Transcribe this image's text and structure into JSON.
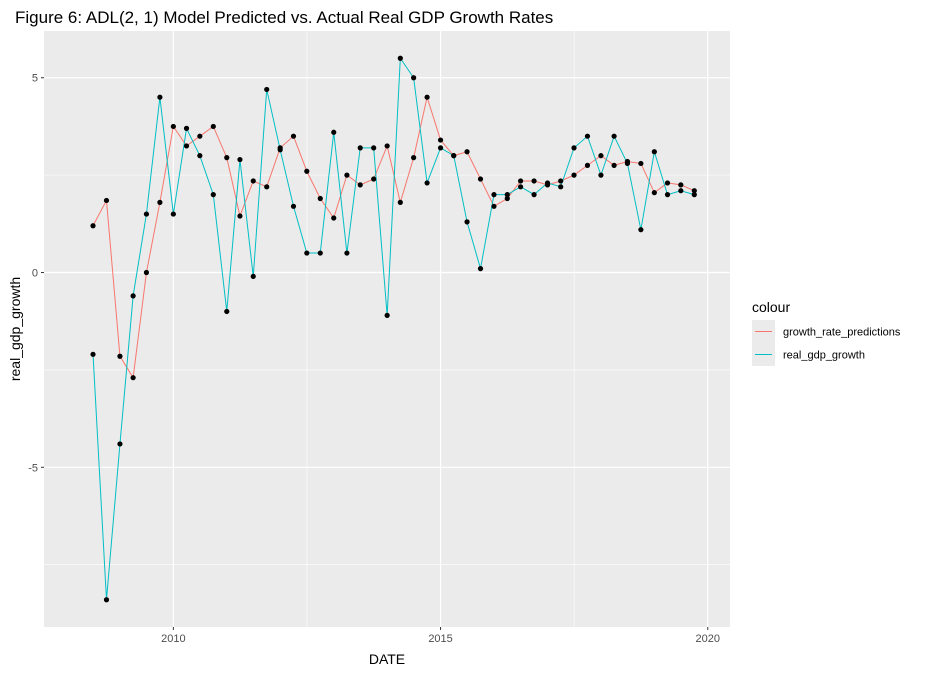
{
  "chart_data": {
    "type": "line",
    "title": "Figure 6: ADL(2, 1) Model Predicted vs. Actual Real GDP Growth Rates",
    "xlabel": "DATE",
    "ylabel": "real_gdp_growth",
    "x_ticks": [
      "2010",
      "2015",
      "2020"
    ],
    "y_ticks": [
      "-5",
      "0",
      "5"
    ],
    "xlim": [
      "2007-08-01",
      "2020-06-01"
    ],
    "ylim": [
      -9.1,
      6.2
    ],
    "grid": true,
    "legend": {
      "title": "colour",
      "position": "right"
    },
    "colors": {
      "panel": "#ebebeb",
      "grid": "#ffffff",
      "growth_rate_predictions": "#f8766d",
      "real_gdp_growth": "#00bfc4",
      "points": "#000000"
    },
    "x": [
      "2008-07-01",
      "2008-10-01",
      "2009-01-01",
      "2009-04-01",
      "2009-07-01",
      "2009-10-01",
      "2010-01-01",
      "2010-04-01",
      "2010-07-01",
      "2010-10-01",
      "2011-01-01",
      "2011-04-01",
      "2011-07-01",
      "2011-10-01",
      "2012-01-01",
      "2012-04-01",
      "2012-07-01",
      "2012-10-01",
      "2013-01-01",
      "2013-04-01",
      "2013-07-01",
      "2013-10-01",
      "2014-01-01",
      "2014-04-01",
      "2014-07-01",
      "2014-10-01",
      "2015-01-01",
      "2015-04-01",
      "2015-07-01",
      "2015-10-01",
      "2016-01-01",
      "2016-04-01",
      "2016-07-01",
      "2016-10-01",
      "2017-01-01",
      "2017-04-01",
      "2017-07-01",
      "2017-10-01",
      "2018-01-01",
      "2018-04-01",
      "2018-07-01",
      "2018-10-01",
      "2019-01-01",
      "2019-04-01",
      "2019-07-01",
      "2019-10-01"
    ],
    "series": [
      {
        "name": "growth_rate_predictions",
        "values": [
          1.2,
          1.85,
          -2.15,
          -2.7,
          0.0,
          1.8,
          3.75,
          3.25,
          3.5,
          3.75,
          2.95,
          1.45,
          2.35,
          2.2,
          3.2,
          3.5,
          2.6,
          1.9,
          1.4,
          2.5,
          2.25,
          2.4,
          3.25,
          1.8,
          2.95,
          4.5,
          3.4,
          3.0,
          3.1,
          2.4,
          1.7,
          1.9,
          2.35,
          2.35,
          2.25,
          2.35,
          2.5,
          2.75,
          3.0,
          2.75,
          2.85,
          2.8,
          2.05,
          2.3,
          2.25,
          2.1
        ]
      },
      {
        "name": "real_gdp_growth",
        "values": [
          -2.1,
          -8.4,
          -4.4,
          -0.6,
          1.5,
          4.5,
          1.5,
          3.7,
          3.0,
          2.0,
          -1.0,
          2.9,
          -0.1,
          4.7,
          3.15,
          1.7,
          0.5,
          0.5,
          3.6,
          0.5,
          3.2,
          3.2,
          -1.1,
          5.5,
          5.0,
          2.3,
          3.2,
          3.0,
          1.3,
          0.1,
          2.0,
          2.0,
          2.2,
          2.0,
          2.3,
          2.2,
          3.2,
          3.5,
          2.5,
          3.5,
          2.8,
          1.1,
          3.1,
          2.0,
          2.1,
          2.0
        ]
      }
    ]
  }
}
